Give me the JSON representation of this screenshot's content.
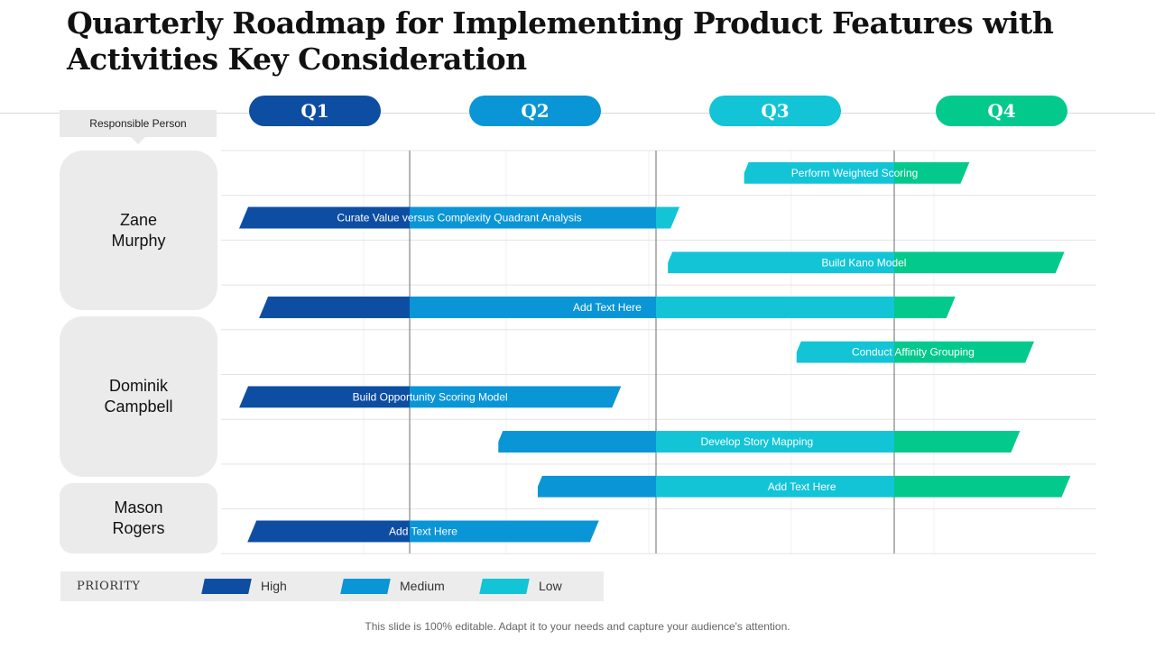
{
  "title": "Quarterly Roadmap for Implementing Product Features with Activities Key Consideration",
  "responsible_label": "Responsible Person",
  "quarters": [
    {
      "label": "Q1",
      "color": "#0d4ea3"
    },
    {
      "label": "Q2",
      "color": "#0a95d6"
    },
    {
      "label": "Q3",
      "color": "#12c4d6"
    },
    {
      "label": "Q4",
      "color": "#04c98c"
    }
  ],
  "people": [
    {
      "name": "Zane\nMurphy"
    },
    {
      "name": "Dominik\nCampbell"
    },
    {
      "name": "Mason\nRogers"
    }
  ],
  "colors": {
    "high": "#0d4ea3",
    "medium": "#0a95d6",
    "low": "#12c4d6",
    "q4": "#04c98c",
    "person_bg": "#ebebeb",
    "legend_bg": "#ececec"
  },
  "chart_data": {
    "type": "gantt",
    "x_units": "quarter",
    "x_range": [
      0,
      4
    ],
    "tasks": [
      {
        "label": "Perform Weighted Scoring",
        "start": 2.37,
        "end": 3.35
      },
      {
        "label": "Curate Value versus Complexity Quadrant Analysis",
        "start": 0.0,
        "end": 2.08
      },
      {
        "label": "Build Kano Model",
        "start": 2.05,
        "end": 3.82
      },
      {
        "label": "Add Text Here",
        "start": 0.12,
        "end": 3.28
      },
      {
        "label": "Conduct Affinity Grouping",
        "start": 2.59,
        "end": 3.67
      },
      {
        "label": "Build Opportunity Scoring Model",
        "start": 0.0,
        "end": 1.84
      },
      {
        "label": "Develop Story Mapping",
        "start": 1.36,
        "end": 3.6
      },
      {
        "label": "Add Text Here",
        "start": 1.52,
        "end": 3.85
      },
      {
        "label": "Add Text Here",
        "start": 0.05,
        "end": 1.75
      }
    ]
  },
  "legend": {
    "title": "PRIORITY",
    "items": [
      {
        "label": "High",
        "color": "#0d4ea3"
      },
      {
        "label": "Medium",
        "color": "#0a95d6"
      },
      {
        "label": "Low",
        "color": "#12c4d6"
      }
    ]
  },
  "footer": "This slide is 100% editable. Adapt it to your needs and capture your audience's attention."
}
